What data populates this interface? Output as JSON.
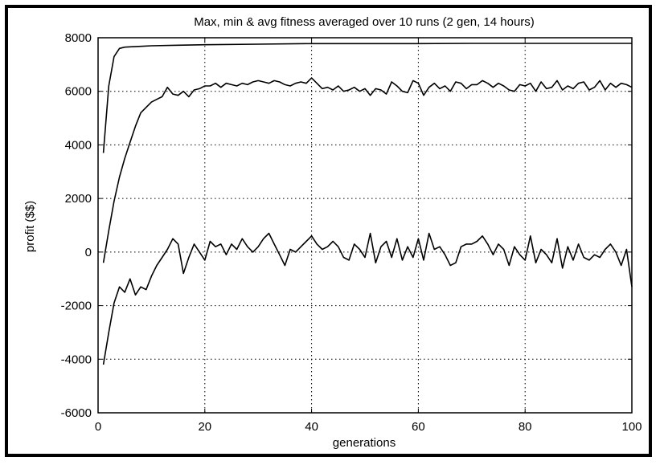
{
  "chart_data": {
    "type": "line",
    "title": "Max, min & avg fitness averaged over 10 runs (2 gen, 14 hours)",
    "xlabel": "generations",
    "ylabel": "profit ($$)",
    "xlim": [
      0,
      100
    ],
    "ylim": [
      -6000,
      8000
    ],
    "xticks": [
      0,
      20,
      40,
      60,
      80,
      100
    ],
    "yticks": [
      -6000,
      -4000,
      -2000,
      0,
      2000,
      4000,
      6000,
      8000
    ],
    "xtick_labels": [
      "0",
      "20",
      "40",
      "60",
      "80",
      "100"
    ],
    "ytick_labels": [
      "-6000",
      "-4000",
      "-2000",
      "0",
      "2000",
      "4000",
      "6000",
      "8000"
    ],
    "grid": true,
    "legend": "none",
    "color": "#000000",
    "series": [
      {
        "x": [
          1,
          2,
          3,
          4,
          5,
          6,
          8,
          10,
          15,
          20,
          30,
          40,
          50,
          60,
          70,
          80,
          90,
          100
        ],
        "values": [
          3700,
          6200,
          7300,
          7600,
          7650,
          7660,
          7680,
          7700,
          7720,
          7740,
          7760,
          7780,
          7780,
          7780,
          7790,
          7790,
          7790,
          7790
        ]
      },
      {
        "x": [
          1,
          2,
          3,
          4,
          5,
          6,
          7,
          8,
          9,
          10,
          11,
          12,
          13,
          14,
          15,
          16,
          17,
          18,
          19,
          20,
          21,
          22,
          23,
          24,
          25,
          26,
          27,
          28,
          29,
          30,
          31,
          32,
          33,
          34,
          35,
          36,
          37,
          38,
          39,
          40,
          41,
          42,
          43,
          44,
          45,
          46,
          47,
          48,
          49,
          50,
          51,
          52,
          53,
          54,
          55,
          56,
          57,
          58,
          59,
          60,
          61,
          62,
          63,
          64,
          65,
          66,
          67,
          68,
          69,
          70,
          71,
          72,
          73,
          74,
          75,
          76,
          77,
          78,
          79,
          80,
          81,
          82,
          83,
          84,
          85,
          86,
          87,
          88,
          89,
          90,
          91,
          92,
          93,
          94,
          95,
          96,
          97,
          98,
          99,
          100
        ],
        "values": [
          -400,
          800,
          1900,
          2800,
          3500,
          4100,
          4700,
          5200,
          5400,
          5600,
          5700,
          5800,
          6150,
          5900,
          5850,
          6000,
          5800,
          6050,
          6100,
          6200,
          6200,
          6300,
          6150,
          6300,
          6250,
          6200,
          6300,
          6250,
          6350,
          6400,
          6350,
          6300,
          6400,
          6350,
          6250,
          6200,
          6300,
          6350,
          6300,
          6500,
          6300,
          6100,
          6150,
          6050,
          6200,
          6000,
          6050,
          6150,
          6000,
          6100,
          5850,
          6100,
          6050,
          5900,
          6350,
          6200,
          6000,
          5950,
          6400,
          6300,
          5850,
          6150,
          6300,
          6100,
          6200,
          6000,
          6350,
          6300,
          6100,
          6250,
          6250,
          6400,
          6300,
          6150,
          6300,
          6200,
          6050,
          6000,
          6250,
          6200,
          6300,
          6000,
          6350,
          6100,
          6150,
          6400,
          6050,
          6200,
          6100,
          6300,
          6350,
          6050,
          6150,
          6400,
          6050,
          6300,
          6150,
          6300,
          6250,
          6150
        ]
      },
      {
        "x": [
          1,
          2,
          3,
          4,
          5,
          6,
          7,
          8,
          9,
          10,
          11,
          12,
          13,
          14,
          15,
          16,
          17,
          18,
          19,
          20,
          21,
          22,
          23,
          24,
          25,
          26,
          27,
          28,
          29,
          30,
          31,
          32,
          33,
          34,
          35,
          36,
          37,
          38,
          39,
          40,
          41,
          42,
          43,
          44,
          45,
          46,
          47,
          48,
          49,
          50,
          51,
          52,
          53,
          54,
          55,
          56,
          57,
          58,
          59,
          60,
          61,
          62,
          63,
          64,
          65,
          66,
          67,
          68,
          69,
          70,
          71,
          72,
          73,
          74,
          75,
          76,
          77,
          78,
          79,
          80,
          81,
          82,
          83,
          84,
          85,
          86,
          87,
          88,
          89,
          90,
          91,
          92,
          93,
          94,
          95,
          96,
          97,
          98,
          99,
          100
        ],
        "values": [
          -4200,
          -3000,
          -1900,
          -1300,
          -1500,
          -1000,
          -1600,
          -1300,
          -1400,
          -900,
          -500,
          -200,
          100,
          500,
          300,
          -800,
          -200,
          300,
          0,
          -300,
          400,
          200,
          300,
          -100,
          300,
          100,
          500,
          200,
          0,
          200,
          500,
          700,
          300,
          -100,
          -500,
          100,
          0,
          200,
          400,
          600,
          300,
          100,
          200,
          400,
          200,
          -200,
          -300,
          300,
          100,
          -200,
          700,
          -400,
          200,
          400,
          -200,
          500,
          -300,
          200,
          -200,
          500,
          -300,
          700,
          100,
          200,
          -100,
          -500,
          -400,
          200,
          300,
          300,
          400,
          600,
          300,
          -100,
          300,
          100,
          -500,
          200,
          -100,
          -300,
          600,
          -400,
          100,
          -100,
          -400,
          500,
          -600,
          200,
          -300,
          300,
          -200,
          -300,
          -100,
          -200,
          100,
          300,
          0,
          -500,
          100,
          -1300
        ]
      }
    ]
  }
}
